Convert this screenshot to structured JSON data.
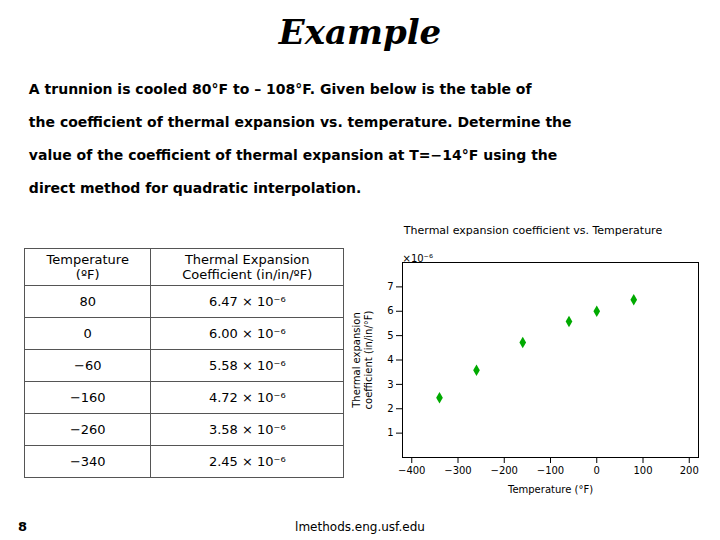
{
  "title": "Example",
  "body_text": [
    " A trunnion is cooled 80°F to – 108°F. Given below is the table of",
    " the coefficient of thermal expansion vs. temperature. Determine the",
    " value of the coefficient of thermal expansion at T=−14°F using the",
    " direct method for quadratic interpolation."
  ],
  "table": {
    "headers": [
      "Temperature\n(ºF)",
      "Thermal Expansion\nCoefficient (in/in/ºF)"
    ],
    "rows": [
      [
        "80",
        "6.47 × 10⁻⁶"
      ],
      [
        "0",
        "6.00 × 10⁻⁶"
      ],
      [
        "−60",
        "5.58 × 10⁻⁶"
      ],
      [
        "−160",
        "4.72 × 10⁻⁶"
      ],
      [
        "−260",
        "3.58 × 10⁻⁶"
      ],
      [
        "−340",
        "2.45 × 10⁻⁶"
      ]
    ]
  },
  "footer": "lmethods.eng.usf.edu",
  "page_number": "8",
  "chart_data": {
    "type": "scatter",
    "title": "Thermal expansion coefficient vs. Temperature",
    "x_label": "Temperature (°F)",
    "y_label": "Thermal expansion\ncoefficient (in/in/°F)",
    "x": [
      80,
      0,
      -60,
      -160,
      -260,
      -340
    ],
    "values": [
      6.47,
      6.0,
      5.58,
      4.72,
      3.58,
      2.45
    ],
    "color": "#00aa00",
    "marker": "diamond",
    "xlim": [
      -420,
      220
    ],
    "xticks": [
      -400,
      -300,
      -200,
      -100,
      0,
      100,
      200
    ],
    "ylim": [
      0,
      8
    ],
    "yticks": [
      1,
      2,
      3,
      4,
      5,
      6,
      7
    ],
    "annotations": [
      "×10⁻⁶"
    ],
    "grid": false
  }
}
